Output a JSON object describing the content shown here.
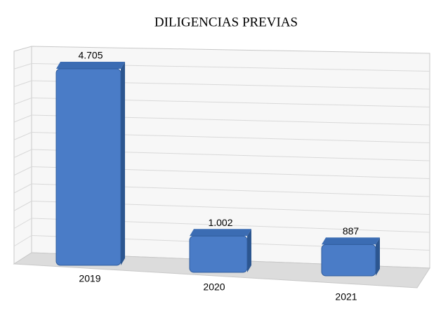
{
  "chart_data": {
    "type": "bar",
    "title": "DILIGENCIAS PREVIAS",
    "categories": [
      "2019",
      "2020",
      "2021"
    ],
    "values": [
      4705,
      1002,
      887
    ],
    "value_labels": [
      "4.705",
      "1.002",
      "887"
    ],
    "color": "#4a7cc7",
    "ylim": [
      0,
      5500
    ]
  }
}
